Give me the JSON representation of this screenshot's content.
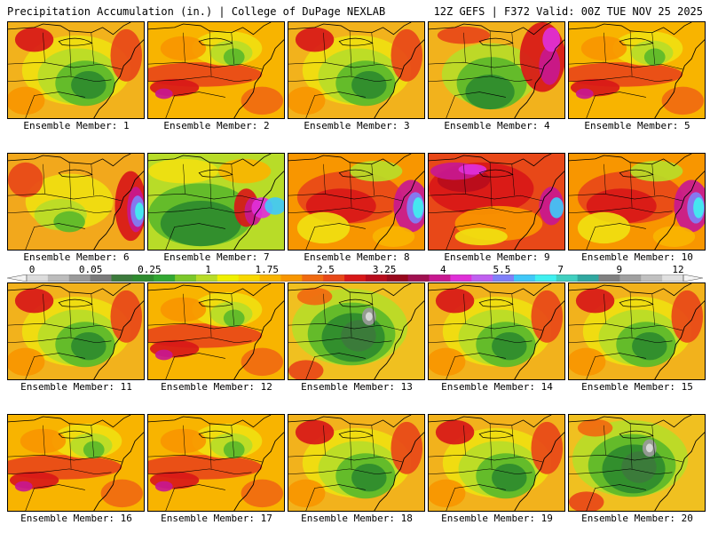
{
  "header": {
    "title_left": "Precipitation Accumulation (in.) | College of DuPage NEXLAB",
    "title_right": "12Z GEFS | F372 Valid: 00Z TUE NOV 25 2025"
  },
  "colorbar": {
    "labels": [
      "0",
      "0.05",
      "0.25",
      "1",
      "1.75",
      "2.5",
      "3.25",
      "4",
      "5.5",
      "7",
      "9",
      "12"
    ],
    "colors": [
      "#dcdcdc",
      "#bcbcbc",
      "#9a9a9a",
      "#7a7a7a",
      "#3c7a3c",
      "#2e8b2e",
      "#32a832",
      "#7cc82a",
      "#b8dc28",
      "#f0f000",
      "#f8d800",
      "#f8b400",
      "#f89600",
      "#f06a10",
      "#e84818",
      "#d81818",
      "#b80c1c",
      "#98081c",
      "#a01050",
      "#c81890",
      "#e030d8",
      "#c060f0",
      "#8080f8",
      "#40c8f8",
      "#40f0f0",
      "#40d0c0",
      "#30a8a0",
      "#808080",
      "#a0a0a0",
      "#c0c0c0",
      "#e0e0e0"
    ]
  },
  "members": [
    {
      "label": "Ensemble Member: 1",
      "style": "green_center"
    },
    {
      "label": "Ensemble Member: 2",
      "style": "red_band"
    },
    {
      "label": "Ensemble Member: 3",
      "style": "green_center"
    },
    {
      "label": "Ensemble Member: 4",
      "style": "green_center_magenta"
    },
    {
      "label": "Ensemble Member: 5",
      "style": "red_band"
    },
    {
      "label": "Ensemble Member: 6",
      "style": "orange_cyan"
    },
    {
      "label": "Ensemble Member: 7",
      "style": "green_magenta_coast"
    },
    {
      "label": "Ensemble Member: 8",
      "style": "red_cyan"
    },
    {
      "label": "Ensemble Member: 9",
      "style": "red_magenta"
    },
    {
      "label": "Ensemble Member: 10",
      "style": "red_cyan"
    },
    {
      "label": "Ensemble Member: 11",
      "style": "green_center"
    },
    {
      "label": "Ensemble Member: 12",
      "style": "red_band"
    },
    {
      "label": "Ensemble Member: 13",
      "style": "green_gray"
    },
    {
      "label": "Ensemble Member: 14",
      "style": "green_center"
    },
    {
      "label": "Ensemble Member: 15",
      "style": "green_center"
    },
    {
      "label": "Ensemble Member: 16",
      "style": "red_band"
    },
    {
      "label": "Ensemble Member: 17",
      "style": "red_band"
    },
    {
      "label": "Ensemble Member: 18",
      "style": "green_center"
    },
    {
      "label": "Ensemble Member: 19",
      "style": "green_center"
    },
    {
      "label": "Ensemble Member: 20",
      "style": "green_gray"
    }
  ]
}
